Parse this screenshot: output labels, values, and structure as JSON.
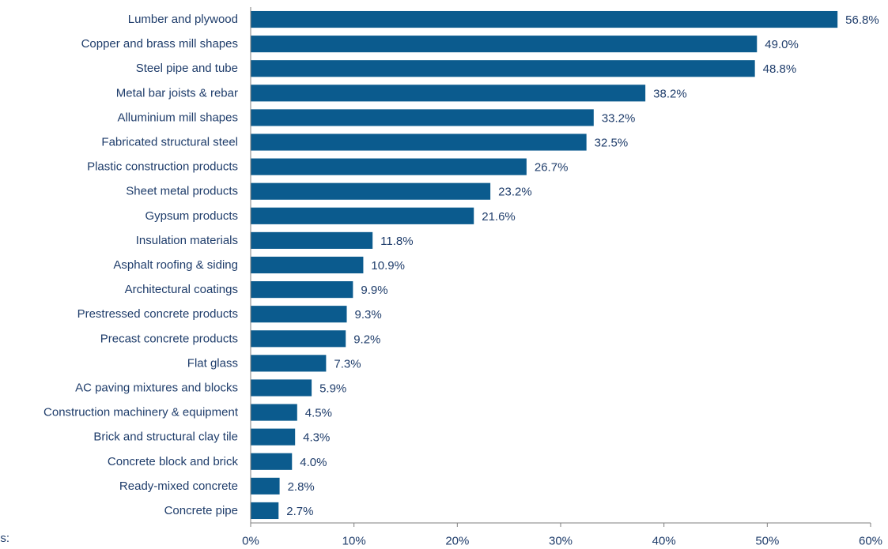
{
  "notes_label": "es:",
  "chart_data": {
    "type": "bar",
    "orientation": "horizontal",
    "categories": [
      "Lumber and plywood",
      "Copper and brass mill shapes",
      "Steel pipe and tube",
      "Metal bar joists & rebar",
      "Alluminium mill shapes",
      "Fabricated structural steel",
      "Plastic construction products",
      "Sheet metal products",
      "Gypsum products",
      "Insulation materials",
      "Asphalt roofing & siding",
      "Architectural coatings",
      "Prestressed concrete products",
      "Precast concrete products",
      "Flat glass",
      "AC paving mixtures and blocks",
      "Construction machinery & equipment",
      "Brick and structural clay tile",
      "Concrete block and brick",
      "Ready-mixed concrete",
      "Concrete pipe"
    ],
    "values": [
      56.8,
      49.0,
      48.8,
      38.2,
      33.2,
      32.5,
      26.7,
      23.2,
      21.6,
      11.8,
      10.9,
      9.9,
      9.3,
      9.2,
      7.3,
      5.9,
      4.5,
      4.3,
      4.0,
      2.8,
      2.7
    ],
    "value_labels": [
      "56.8%",
      "49.0%",
      "48.8%",
      "38.2%",
      "33.2%",
      "32.5%",
      "26.7%",
      "23.2%",
      "21.6%",
      "11.8%",
      "10.9%",
      "9.9%",
      "9.3%",
      "9.2%",
      "7.3%",
      "5.9%",
      "4.5%",
      "4.3%",
      "4.0%",
      "2.8%",
      "2.7%"
    ],
    "xlim": [
      0,
      60
    ],
    "x_ticks": [
      "0%",
      "10%",
      "20%",
      "30%",
      "40%",
      "50%",
      "60%"
    ],
    "bar_color": "#0b5b8e",
    "text_color": "#1f3d6b",
    "grid": false
  }
}
